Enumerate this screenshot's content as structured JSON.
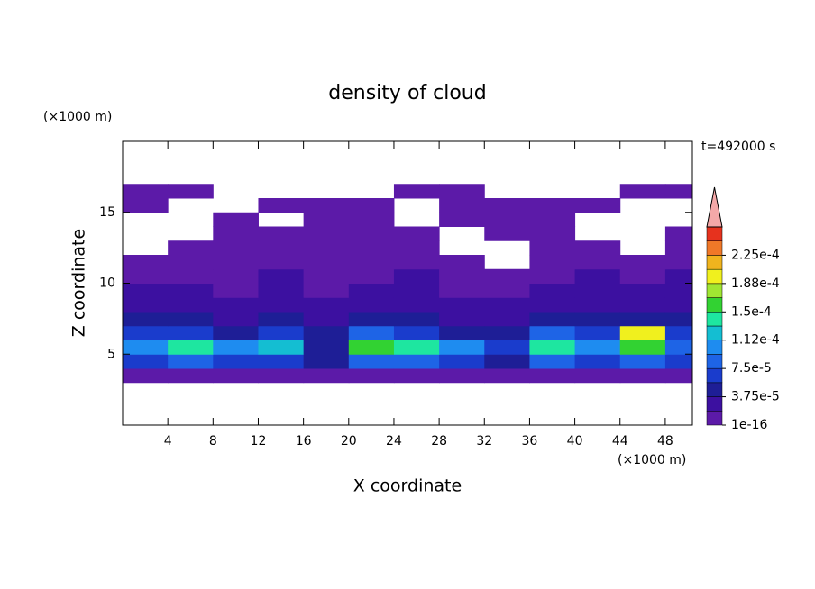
{
  "chart_data": {
    "type": "contour",
    "title": "density of cloud",
    "xlabel": "X coordinate",
    "ylabel": "Z coordinate",
    "x_unit": "(×1000 m)",
    "y_unit": "(×1000 m)",
    "annotation": "t=492000 s",
    "xlim": [
      0,
      50.4
    ],
    "ylim": [
      0,
      20
    ],
    "xticks": [
      4,
      8,
      12,
      16,
      20,
      24,
      28,
      32,
      36,
      40,
      44,
      48
    ],
    "yticks": [
      5,
      10,
      15
    ],
    "x_edges": [
      0,
      4,
      8,
      12,
      16,
      20,
      24,
      28,
      32,
      36,
      40,
      44,
      48,
      50.4
    ],
    "z_edges": [
      3,
      4,
      5,
      6,
      7,
      8,
      9,
      10,
      11,
      12,
      13,
      14,
      15,
      16,
      17
    ],
    "values": [
      [
        1e-05,
        1e-05,
        1e-05,
        1e-05,
        1e-05,
        1e-05,
        1e-05,
        1e-05,
        1e-05,
        1e-05,
        1e-05,
        1e-05,
        1e-05
      ],
      [
        6e-05,
        8e-05,
        6e-05,
        7e-05,
        4e-05,
        9e-05,
        8e-05,
        6e-05,
        4e-05,
        8e-05,
        7e-05,
        9e-05,
        6e-05
      ],
      [
        0.00011,
        0.00014,
        0.0001,
        0.00012,
        5e-05,
        0.00015,
        0.00014,
        0.00011,
        6e-05,
        0.00014,
        0.00011,
        0.00016,
        8e-05
      ],
      [
        6e-05,
        7e-05,
        5e-05,
        6e-05,
        4e-05,
        8e-05,
        7e-05,
        5e-05,
        5e-05,
        9e-05,
        7e-05,
        0.00019,
        6e-05
      ],
      [
        4e-05,
        4e-05,
        3e-05,
        4e-05,
        3e-05,
        4e-05,
        4e-05,
        3e-05,
        3e-05,
        4e-05,
        4e-05,
        5e-05,
        4e-05
      ],
      [
        2.5e-05,
        2e-05,
        2e-05,
        2.5e-05,
        2e-05,
        2.5e-05,
        2e-05,
        2e-05,
        2e-05,
        2.5e-05,
        2e-05,
        2.5e-05,
        2.5e-05
      ],
      [
        2e-05,
        2e-05,
        1e-05,
        2e-05,
        1e-05,
        2e-05,
        2e-05,
        1e-05,
        1e-05,
        2e-05,
        2e-05,
        2e-05,
        2e-05
      ],
      [
        1e-05,
        1e-05,
        1e-05,
        2e-05,
        1e-05,
        1e-05,
        2e-05,
        1e-05,
        1e-05,
        1e-05,
        2e-05,
        1e-05,
        2e-05
      ],
      [
        1e-05,
        1e-05,
        1e-05,
        1e-05,
        1e-05,
        1e-05,
        1e-05,
        1e-05,
        null,
        1e-05,
        1e-05,
        1e-05,
        1e-05
      ],
      [
        null,
        1e-05,
        1e-05,
        1e-05,
        1e-05,
        1e-05,
        1e-05,
        null,
        null,
        1e-05,
        1e-05,
        null,
        1e-05
      ],
      [
        null,
        null,
        1e-05,
        1e-05,
        1e-05,
        1e-05,
        1e-05,
        null,
        1e-05,
        1e-05,
        null,
        null,
        1e-05
      ],
      [
        null,
        null,
        1e-05,
        null,
        1e-05,
        1e-05,
        null,
        1e-05,
        1e-05,
        1e-05,
        null,
        null,
        null
      ],
      [
        1e-05,
        null,
        null,
        1e-05,
        1e-05,
        1e-05,
        null,
        1e-05,
        1e-05,
        1e-05,
        1e-05,
        null,
        null
      ],
      [
        1e-05,
        1e-05,
        null,
        null,
        null,
        null,
        1e-05,
        1e-05,
        null,
        null,
        null,
        1e-05,
        1e-05
      ]
    ],
    "levels": [
      1e-16,
      1.875e-05,
      3.75e-05,
      5.625e-05,
      7.5e-05,
      9.375e-05,
      0.0001125,
      0.00013125,
      0.00015,
      0.00016875,
      0.0001875,
      0.00020625,
      0.000225,
      0.00024375,
      0.0002625
    ],
    "colors": [
      "#5c1aa8",
      "#3c10a0",
      "#1e1e96",
      "#1a3ccc",
      "#1e64e6",
      "#1e8cf0",
      "#14bed2",
      "#1ee6a0",
      "#32d232",
      "#a0e632",
      "#f0f01e",
      "#f0b41e",
      "#f07828",
      "#e6321e"
    ],
    "extend_color": "#f4a8a8",
    "colorbar_ticks": [
      {
        "value": 1e-16,
        "label": "1e-16"
      },
      {
        "value": 3.75e-05,
        "label": "3.75e-5"
      },
      {
        "value": 7.5e-05,
        "label": "7.5e-5"
      },
      {
        "value": 0.0001125,
        "label": "1.12e-4"
      },
      {
        "value": 0.00015,
        "label": "1.5e-4"
      },
      {
        "value": 0.0001875,
        "label": "1.88e-4"
      },
      {
        "value": 0.000225,
        "label": "2.25e-4"
      }
    ]
  }
}
